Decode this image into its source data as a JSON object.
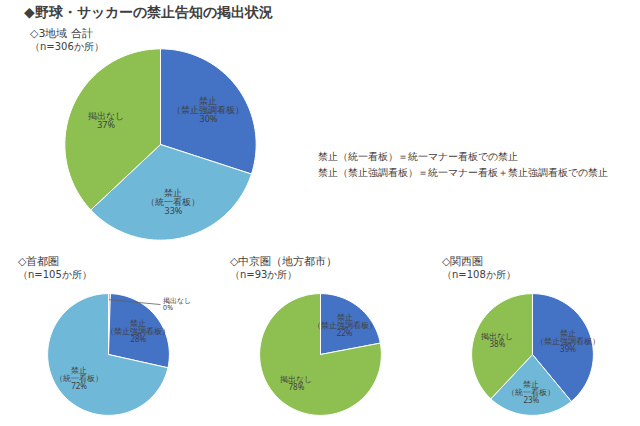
{
  "title": "◆野球・サッカーの禁止告知の掲出状況",
  "annotations": [
    "禁止（統一看板）＝統一マナー看板での禁止",
    "禁止（禁止強調看板）＝統一マナー看板＋禁止強調看板での禁止"
  ],
  "chart_data": [
    {
      "type": "pie",
      "title": "◇3地域 合計",
      "subtitle": "（n=306か所）",
      "categories": [
        "禁止\n（禁止強調看板）",
        "禁止\n（統一看板）",
        "掲出なし"
      ],
      "values": [
        30,
        33,
        37
      ],
      "value_labels": [
        "30%",
        "33%",
        "37%"
      ],
      "colors": [
        "#4472C4",
        "#70B8D8",
        "#8DC050"
      ],
      "data_labels": true
    },
    {
      "type": "pie",
      "title": "◇首都圏",
      "subtitle": "（n=105か所）",
      "categories": [
        "掲出なし",
        "禁止\n（禁止強調看板）",
        "禁止\n（統一看板）"
      ],
      "values": [
        0.5,
        28,
        71.5
      ],
      "value_labels": [
        "0%",
        "28%",
        "72%"
      ],
      "colors": [
        "#8DC050",
        "#4472C4",
        "#70B8D8"
      ],
      "data_labels": true
    },
    {
      "type": "pie",
      "title": "◇中京圏（地方都市）",
      "subtitle": "（n=93か所）",
      "categories": [
        "禁止\n（禁止強調看板）",
        "掲出なし"
      ],
      "values": [
        22,
        78
      ],
      "value_labels": [
        "22%",
        "78%"
      ],
      "colors": [
        "#4472C4",
        "#8DC050"
      ],
      "data_labels": true
    },
    {
      "type": "pie",
      "title": "◇関西圏",
      "subtitle": "（n=108か所）",
      "categories": [
        "禁止\n（禁止強調看板）",
        "禁止\n（統一看板）",
        "掲出なし"
      ],
      "values": [
        39,
        23,
        38
      ],
      "value_labels": [
        "39%",
        "23%",
        "38%"
      ],
      "colors": [
        "#4472C4",
        "#70B8D8",
        "#8DC050"
      ],
      "data_labels": true
    }
  ]
}
